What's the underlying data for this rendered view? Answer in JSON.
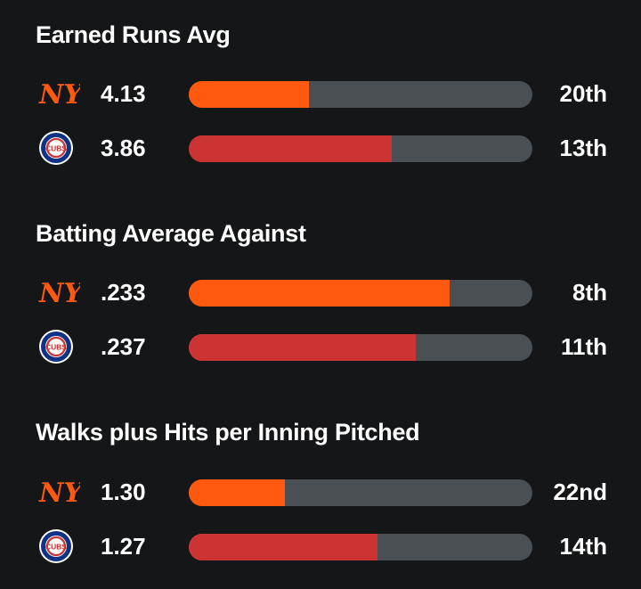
{
  "colors": {
    "background": "#151617",
    "track": "#4a4f54",
    "mets_bar": "#ff5910",
    "cubs_bar": "#cc3433",
    "mets_logo_orange": "#ff5910",
    "cubs_blue": "#0e3386",
    "cubs_red": "#cc3433"
  },
  "teams": {
    "mets": {
      "logo_icon": "mets-logo-icon",
      "logo_text": "NY"
    },
    "cubs": {
      "logo_icon": "cubs-logo-icon",
      "logo_text": "CUBS"
    }
  },
  "sections": [
    {
      "title": "Earned Runs Avg",
      "rows": [
        {
          "team": "mets",
          "value": "4.13",
          "rank": "20th",
          "fill_fraction": 0.35
        },
        {
          "team": "cubs",
          "value": "3.86",
          "rank": "13th",
          "fill_fraction": 0.59
        }
      ]
    },
    {
      "title": "Batting Average Against",
      "rows": [
        {
          "team": "mets",
          "value": ".233",
          "rank": "8th",
          "fill_fraction": 0.76
        },
        {
          "team": "cubs",
          "value": ".237",
          "rank": "11th",
          "fill_fraction": 0.66
        }
      ]
    },
    {
      "title": "Walks plus Hits per Inning Pitched",
      "rows": [
        {
          "team": "mets",
          "value": "1.30",
          "rank": "22nd",
          "fill_fraction": 0.28
        },
        {
          "team": "cubs",
          "value": "1.27",
          "rank": "14th",
          "fill_fraction": 0.55
        }
      ]
    }
  ]
}
